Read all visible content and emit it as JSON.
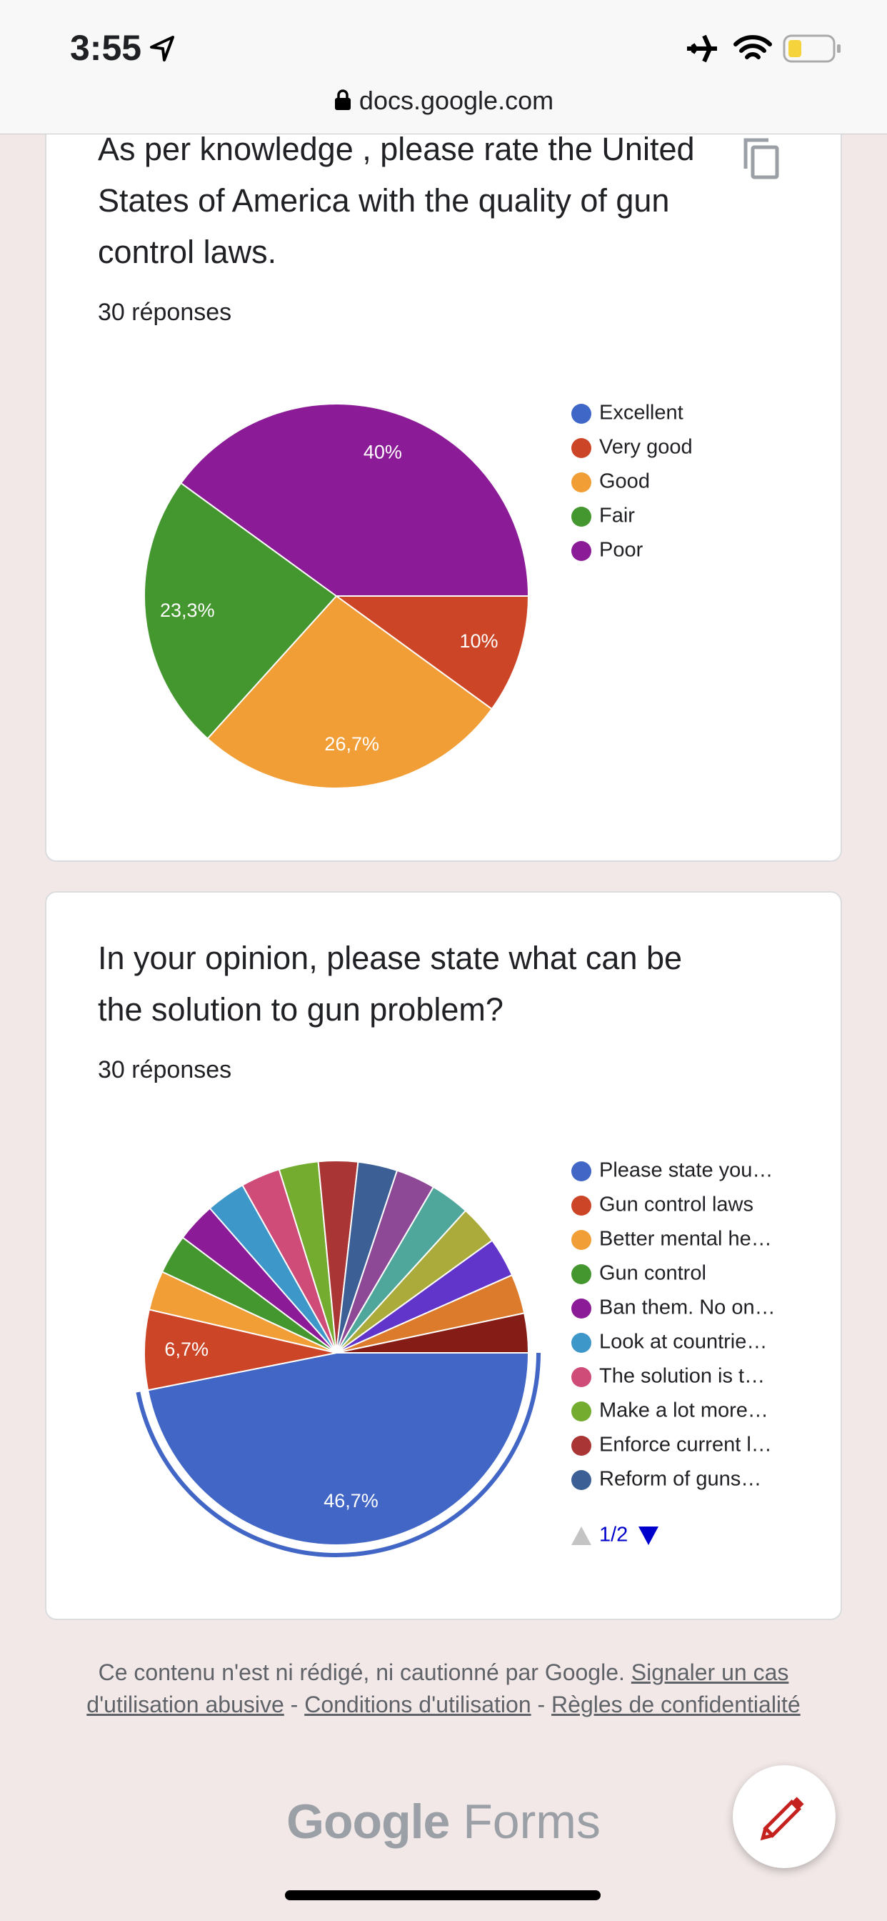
{
  "status_bar": {
    "time": "3:55"
  },
  "address_bar": {
    "url": "docs.google.com"
  },
  "chart_data": [
    {
      "type": "pie",
      "title": "As per knowledge , please rate the United States of America with the quality of gun control laws.",
      "subtitle": "30 réponses",
      "categories": [
        "Excellent",
        "Very good",
        "Good",
        "Fair",
        "Poor"
      ],
      "values": [
        0,
        10,
        26.7,
        23.3,
        40
      ],
      "value_labels": [
        null,
        "10%",
        "26,7%",
        "23,3%",
        "40%"
      ],
      "colors": [
        "#3e67c8",
        "#cc4527",
        "#f19e36",
        "#44962f",
        "#8b1b96"
      ]
    },
    {
      "type": "pie",
      "title": "In your opinion, please state what can be the solution to gun problem?",
      "subtitle": "30 réponses",
      "categories": [
        "Please state you…",
        "Gun control laws",
        "Better mental he…",
        "Gun control",
        "Ban them. No on…",
        "Look at countrie…",
        "The solution is t…",
        "Make a lot more…",
        "Enforce current l…",
        "Reform of guns…",
        null,
        null,
        null,
        null,
        null,
        null
      ],
      "values": [
        46.7,
        6.7,
        3.3,
        3.3,
        3.3,
        3.3,
        3.3,
        3.3,
        3.3,
        3.3,
        3.3,
        3.3,
        3.3,
        3.3,
        3.3,
        3.3
      ],
      "value_labels": [
        "46,7%",
        "6,7%",
        null,
        null,
        null,
        null,
        null,
        null,
        null,
        null,
        null,
        null,
        null,
        null,
        null,
        null
      ],
      "colors": [
        "#4166c5",
        "#cc4527",
        "#f19e36",
        "#44962f",
        "#8b1b96",
        "#3d97c9",
        "#d04c78",
        "#73ac2f",
        "#a93635",
        "#3c6095",
        "#8e4996",
        "#4ea79a",
        "#aaab3b",
        "#6135c9",
        "#dc7b2b",
        "#851c15"
      ],
      "legend_page": "1/2"
    }
  ],
  "footer": {
    "notice": "Ce contenu n'est ni rédigé, ni cautionné par Google.",
    "links": [
      "Signaler un cas d'utilisation abusive",
      "Conditions d'utilisation",
      "Règles de confidentialité"
    ],
    "separator": "-"
  },
  "brand": {
    "company": "Google",
    "product": "Forms"
  }
}
